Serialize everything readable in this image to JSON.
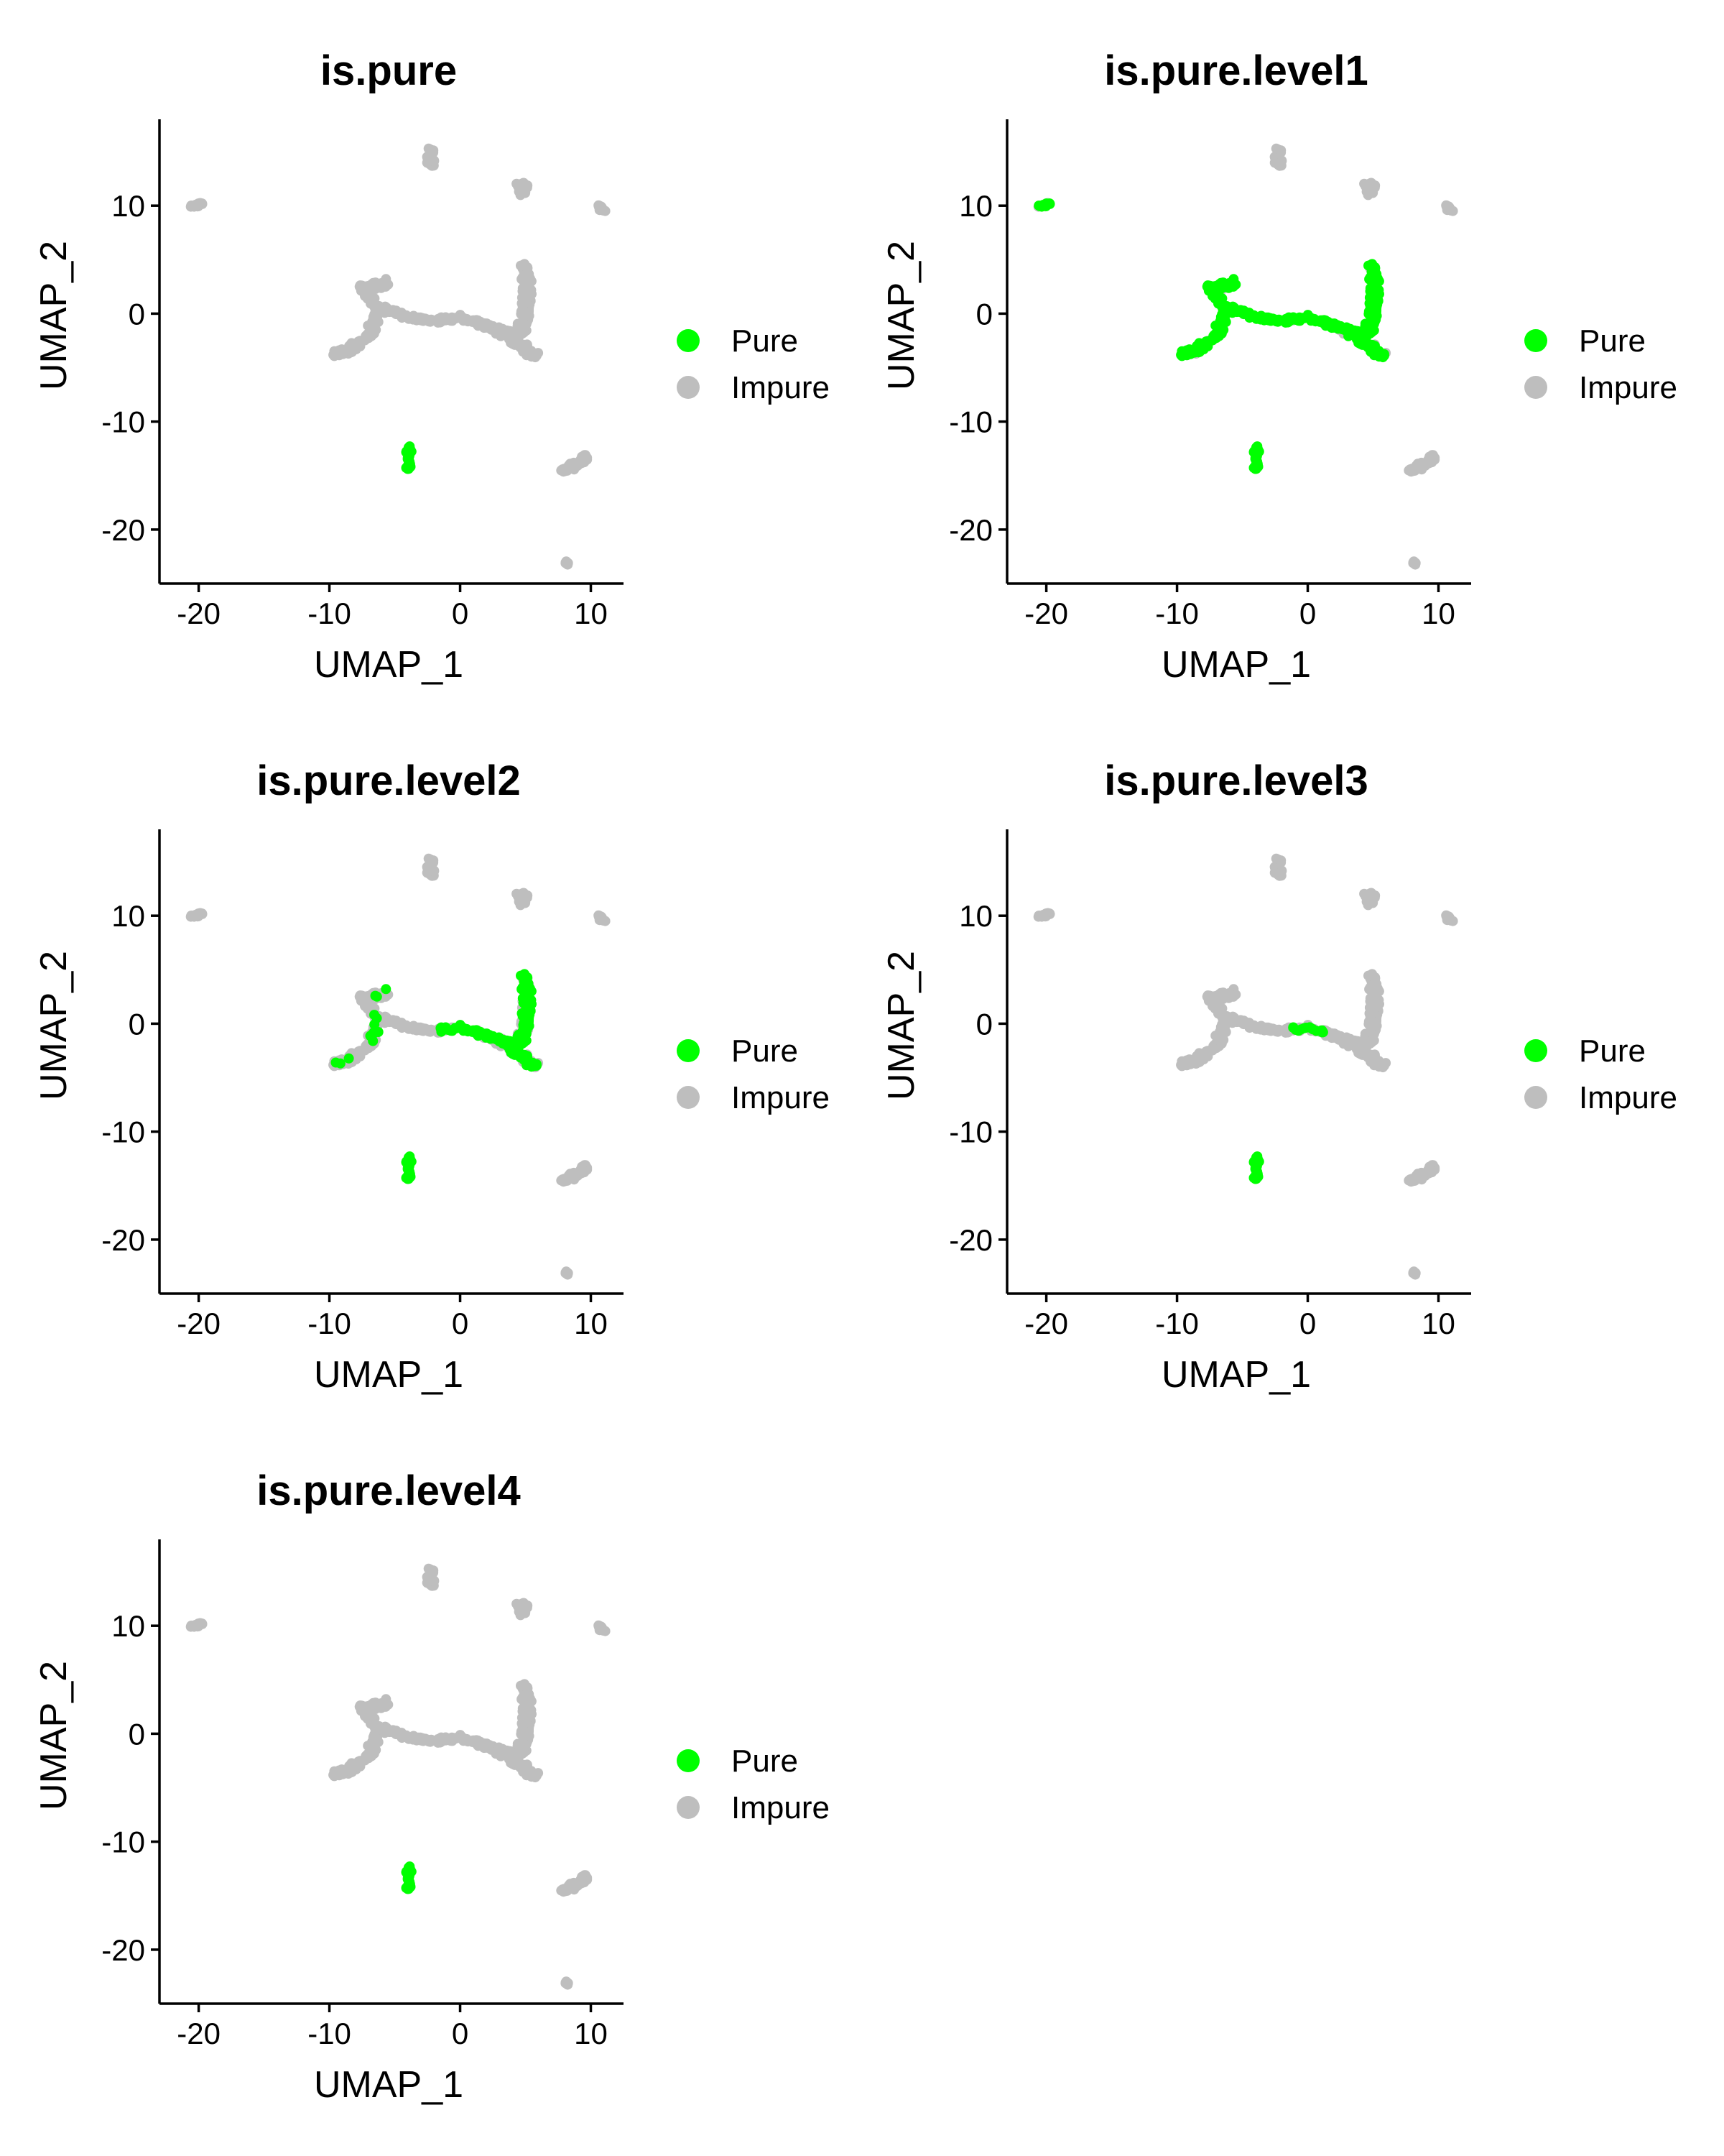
{
  "colors": {
    "pure": "#00FF00",
    "impure": "#BEBEBE",
    "axis": "#000000"
  },
  "chart_data": [
    {
      "type": "scatter",
      "title": "is.pure",
      "xlabel": "UMAP_1",
      "ylabel": "UMAP_2",
      "xlim": [
        -23,
        12.5
      ],
      "ylim": [
        -25,
        18
      ],
      "xticks": [
        -20,
        -10,
        0,
        10
      ],
      "yticks": [
        -20,
        -10,
        0,
        10
      ],
      "legend": {
        "placement": "right",
        "entries": [
          "Pure",
          "Impure"
        ]
      },
      "highlight": "none"
    },
    {
      "type": "scatter",
      "title": "is.pure.level1",
      "xlabel": "UMAP_1",
      "ylabel": "UMAP_2",
      "xlim": [
        -23,
        12.5
      ],
      "ylim": [
        -25,
        18
      ],
      "xticks": [
        -20,
        -10,
        0,
        10
      ],
      "yticks": [
        -20,
        -10,
        0,
        10
      ],
      "legend": {
        "placement": "right",
        "entries": [
          "Pure",
          "Impure"
        ]
      },
      "highlight": "all"
    },
    {
      "type": "scatter",
      "title": "is.pure.level2",
      "xlabel": "UMAP_1",
      "ylabel": "UMAP_2",
      "xlim": [
        -23,
        12.5
      ],
      "ylim": [
        -25,
        18
      ],
      "xticks": [
        -20,
        -10,
        0,
        10
      ],
      "yticks": [
        -20,
        -10,
        0,
        10
      ],
      "legend": {
        "placement": "right",
        "entries": [
          "Pure",
          "Impure"
        ]
      },
      "highlight": "right"
    },
    {
      "type": "scatter",
      "title": "is.pure.level3",
      "xlabel": "UMAP_1",
      "ylabel": "UMAP_2",
      "xlim": [
        -23,
        12.5
      ],
      "ylim": [
        -25,
        18
      ],
      "xticks": [
        -20,
        -10,
        0,
        10
      ],
      "yticks": [
        -20,
        -10,
        0,
        10
      ],
      "legend": {
        "placement": "right",
        "entries": [
          "Pure",
          "Impure"
        ]
      },
      "highlight": "center"
    },
    {
      "type": "scatter",
      "title": "is.pure.level4",
      "xlabel": "UMAP_1",
      "ylabel": "UMAP_2",
      "xlim": [
        -23,
        12.5
      ],
      "ylim": [
        -25,
        18
      ],
      "xticks": [
        -20,
        -10,
        0,
        10
      ],
      "yticks": [
        -20,
        -10,
        0,
        10
      ],
      "legend": {
        "placement": "right",
        "entries": [
          "Pure",
          "Impure"
        ]
      },
      "highlight": "none"
    }
  ]
}
